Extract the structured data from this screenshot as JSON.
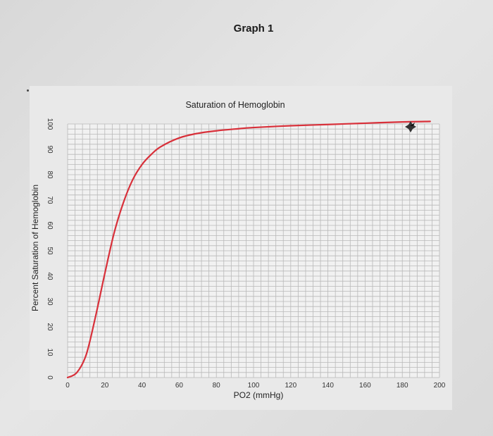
{
  "page": {
    "heading": "Graph 1"
  },
  "chart_data": {
    "type": "line",
    "title": "Saturation of Hemoglobin",
    "xlabel": "PO2 (mmHg)",
    "ylabel": "Percent Saturation of Hemoglobin",
    "xlim": [
      0,
      200
    ],
    "ylim": [
      0,
      100
    ],
    "xticks": [
      0,
      20,
      40,
      60,
      80,
      100,
      120,
      140,
      160,
      180,
      200
    ],
    "yticks": [
      0,
      10,
      20,
      30,
      40,
      50,
      60,
      70,
      80,
      90,
      100
    ],
    "grid": true,
    "series": [
      {
        "color": "#d8303a",
        "x": [
          0,
          5,
          10,
          15,
          20,
          25,
          30,
          35,
          40,
          45,
          50,
          60,
          70,
          80,
          90,
          100,
          120,
          140,
          160,
          180,
          195
        ],
        "y": [
          0,
          2,
          9,
          24,
          41,
          57,
          69,
          78,
          84,
          88,
          91,
          94.5,
          96.3,
          97.3,
          98,
          98.6,
          99.3,
          99.8,
          100.3,
          100.8,
          101
        ]
      }
    ]
  }
}
